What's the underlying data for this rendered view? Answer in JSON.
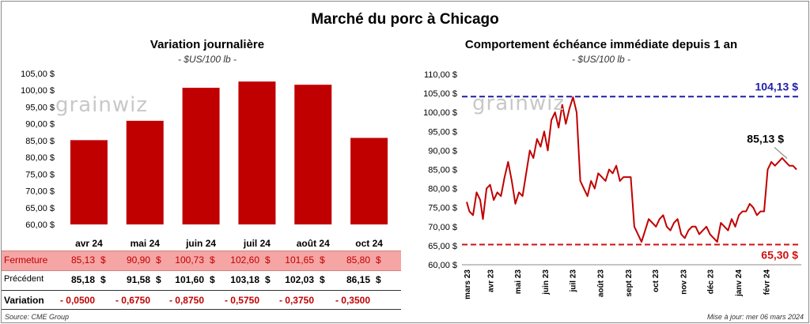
{
  "title": "Marché du porc à Chicago",
  "watermark": "grainwiz",
  "left_panel": {
    "title": "Variation  journalière",
    "subtitle": "- $US/100 lb -",
    "table": {
      "rows": [
        {
          "label": "Fermeture",
          "values": [
            "85,13",
            "90,90",
            "100,73",
            "102,60",
            "101,65",
            "85,80"
          ],
          "unit": "$"
        },
        {
          "label": "Précédent",
          "values": [
            "85,18",
            "91,58",
            "101,60",
            "103,18",
            "102,03",
            "86,15"
          ],
          "unit": "$"
        },
        {
          "label": "Variation",
          "values": [
            "- 0,0500",
            "- 0,6750",
            "- 0,8750",
            "- 0,5750",
            "- 0,3750",
            "- 0,3500"
          ],
          "unit": ""
        }
      ]
    }
  },
  "right_panel": {
    "title": "Comportement  échéance immédiate depuis 1 an",
    "subtitle": "- $US/100 lb -",
    "annotations": {
      "high": "104,13 $",
      "low": "65,30 $",
      "last": "85,13 $"
    }
  },
  "footer": {
    "source": "Source: CME Group",
    "updated": "Mise à jour: mer 06 mars 2024"
  },
  "colors": {
    "bar": "#c00000",
    "line": "#c00000",
    "high_line": "#1f1fa8",
    "low_line": "#d01010",
    "table_highlight": "#f6a5a5"
  },
  "chart_data": [
    {
      "type": "bar",
      "title": "Variation  journalière",
      "subtitle": "- $US/100 lb -",
      "categories": [
        "avr 24",
        "mai 24",
        "juin 24",
        "juil 24",
        "août 24",
        "oct 24"
      ],
      "values": [
        85.13,
        90.9,
        100.73,
        102.6,
        101.65,
        85.8
      ],
      "ylim": [
        60,
        105
      ],
      "yticks": [
        "60,00 $",
        "65,00 $",
        "70,00 $",
        "75,00 $",
        "80,00 $",
        "85,00 $",
        "90,00 $",
        "95,00 $",
        "100,00 $",
        "105,00 $"
      ],
      "grid": false
    },
    {
      "type": "line",
      "title": "Comportement  échéance immédiate depuis 1 an",
      "subtitle": "- $US/100 lb -",
      "ylim": [
        60,
        110
      ],
      "yticks": [
        "60,00 $",
        "65,00 $",
        "70,00 $",
        "75,00 $",
        "80,00 $",
        "85,00 $",
        "90,00 $",
        "95,00 $",
        "100,00 $",
        "105,00 $",
        "110,00 $"
      ],
      "xticks": [
        "mars 23",
        "avr 23",
        "mai 23",
        "juin 23",
        "juil 23",
        "août 23",
        "sept 23",
        "oct 23",
        "nov 23",
        "déc 23",
        "janv 24",
        "févr 24"
      ],
      "reference_lines": [
        {
          "value": 104.13,
          "label": "104,13 $"
        },
        {
          "value": 65.3,
          "label": "65,30 $"
        }
      ],
      "last_value_label": "85,13 $",
      "x": [
        "2023-03-06",
        "2023-03-09",
        "2023-03-13",
        "2023-03-17",
        "2023-03-21",
        "2023-03-24",
        "2023-03-28",
        "2023-04-01",
        "2023-04-05",
        "2023-04-09",
        "2023-04-13",
        "2023-04-17",
        "2023-04-21",
        "2023-04-25",
        "2023-04-29",
        "2023-05-03",
        "2023-05-07",
        "2023-05-11",
        "2023-05-15",
        "2023-05-19",
        "2023-05-23",
        "2023-05-27",
        "2023-05-31",
        "2023-06-04",
        "2023-06-08",
        "2023-06-12",
        "2023-06-16",
        "2023-06-20",
        "2023-06-24",
        "2023-06-28",
        "2023-07-02",
        "2023-07-06",
        "2023-07-10",
        "2023-07-14",
        "2023-07-18",
        "2023-07-22",
        "2023-07-26",
        "2023-07-30",
        "2023-08-03",
        "2023-08-07",
        "2023-08-11",
        "2023-08-15",
        "2023-08-19",
        "2023-08-23",
        "2023-08-27",
        "2023-08-31",
        "2023-09-04",
        "2023-09-08",
        "2023-09-12",
        "2023-09-16",
        "2023-09-20",
        "2023-09-24",
        "2023-09-28",
        "2023-10-02",
        "2023-10-06",
        "2023-10-10",
        "2023-10-14",
        "2023-10-18",
        "2023-10-22",
        "2023-10-26",
        "2023-10-30",
        "2023-11-03",
        "2023-11-07",
        "2023-11-11",
        "2023-11-15",
        "2023-11-19",
        "2023-11-23",
        "2023-11-27",
        "2023-12-01",
        "2023-12-05",
        "2023-12-09",
        "2023-12-13",
        "2023-12-17",
        "2023-12-21",
        "2023-12-25",
        "2023-12-29",
        "2024-01-02",
        "2024-01-06",
        "2024-01-10",
        "2024-01-14",
        "2024-01-18",
        "2024-01-22",
        "2024-01-26",
        "2024-01-30",
        "2024-02-03",
        "2024-02-07",
        "2024-02-11",
        "2024-02-15",
        "2024-02-19",
        "2024-02-23",
        "2024-02-27",
        "2024-03-02",
        "2024-03-06"
      ],
      "values": [
        76.5,
        74,
        73,
        79,
        77,
        72,
        80,
        81,
        77,
        79,
        78,
        83,
        87,
        82,
        76,
        79,
        78,
        84,
        90,
        88,
        93,
        91,
        95,
        90,
        98,
        100,
        96,
        102,
        97,
        101,
        104,
        100,
        82,
        80,
        78,
        82,
        80,
        84,
        83,
        82,
        85,
        84,
        86,
        82,
        83,
        83,
        83,
        70,
        68,
        66,
        69,
        72,
        71,
        70,
        72,
        73,
        70,
        69,
        71,
        72,
        68,
        67,
        69,
        70,
        70,
        68,
        69,
        70,
        68,
        67,
        66,
        71,
        70,
        69,
        72,
        70,
        73,
        74,
        74,
        76,
        75,
        73,
        74,
        74,
        85,
        87,
        86,
        87,
        88,
        87,
        86,
        86,
        85
      ]
    }
  ]
}
